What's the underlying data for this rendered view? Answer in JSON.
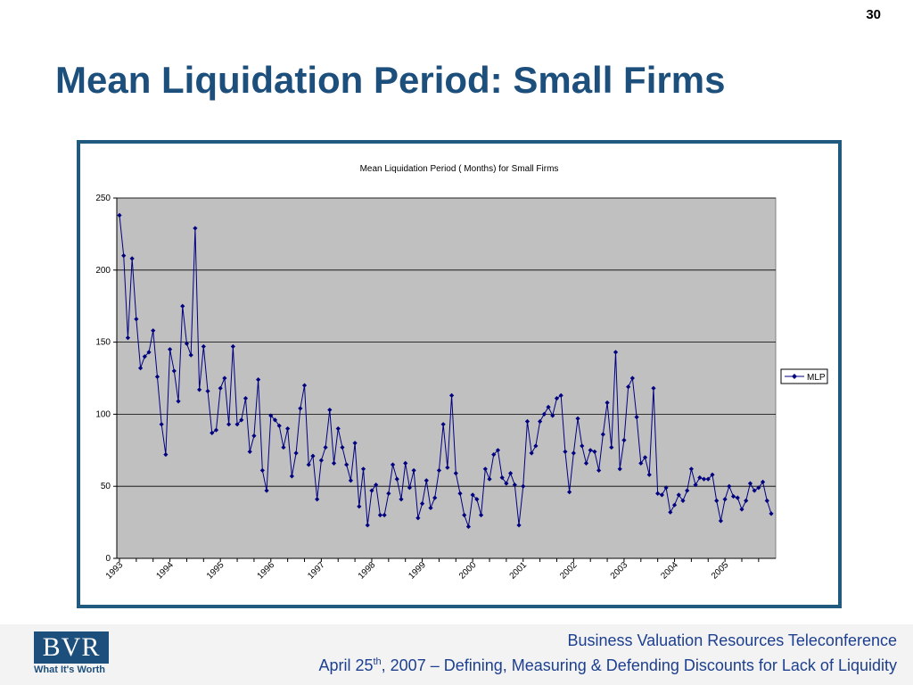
{
  "slide": {
    "number": "30",
    "title": "Mean Liquidation Period: Small Firms"
  },
  "footer": {
    "logo_text": "BVR",
    "logo_tagline": "What It's Worth",
    "line1": "Business Valuation Resources Teleconference",
    "line2_date_prefix": "April 25",
    "line2_date_sup": "th",
    "line2_rest": ", 2007 – Defining, Measuring & Defending Discounts for Lack of Liquidity"
  },
  "colors": {
    "title": "#1d4f7c",
    "frame": "#205a7f",
    "plot_bg": "#c0c0c0",
    "series": "#000080",
    "footer_text": "#1d3f8f"
  },
  "chart_data": {
    "type": "line",
    "title": "Mean Liquidation Period ( Months) for Small Firms",
    "xlabel": "",
    "ylabel": "",
    "ylim": [
      0,
      250
    ],
    "yticks": [
      0,
      50,
      100,
      150,
      200,
      250
    ],
    "x_tick_labels": [
      "1993",
      "1994",
      "1995",
      "1996",
      "1997",
      "1998",
      "1999",
      "2000",
      "2001",
      "2002",
      "2003",
      "2004",
      "2005"
    ],
    "grid": true,
    "legend_position": "right",
    "series": [
      {
        "name": "MLP",
        "marker": "diamond",
        "values": [
          238,
          210,
          153,
          208,
          166,
          132,
          140,
          143,
          158,
          126,
          93,
          72,
          145,
          130,
          109,
          175,
          149,
          141,
          229,
          117,
          147,
          116,
          87,
          89,
          118,
          125,
          93,
          147,
          93,
          96,
          111,
          74,
          85,
          124,
          61,
          47,
          99,
          96,
          92,
          77,
          90,
          57,
          73,
          104,
          120,
          65,
          71,
          41,
          68,
          77,
          103,
          66,
          90,
          77,
          65,
          54,
          80,
          36,
          62,
          23,
          47,
          51,
          30,
          30,
          45,
          65,
          55,
          41,
          66,
          49,
          61,
          28,
          38,
          54,
          35,
          42,
          61,
          93,
          63,
          113,
          59,
          45,
          30,
          22,
          44,
          41,
          30,
          62,
          55,
          72,
          75,
          56,
          52,
          59,
          51,
          23,
          50,
          95,
          73,
          78,
          95,
          100,
          105,
          99,
          111,
          113,
          74,
          46,
          73,
          97,
          78,
          66,
          75,
          74,
          61,
          86,
          108,
          77,
          143,
          62,
          82,
          119,
          125,
          98,
          66,
          70,
          58,
          118,
          45,
          44,
          49,
          32,
          37,
          44,
          40,
          47,
          62,
          51,
          56,
          55,
          55,
          58,
          40,
          26,
          41,
          50,
          43,
          42,
          34,
          40,
          52,
          47,
          49,
          53,
          40,
          31
        ]
      }
    ]
  }
}
